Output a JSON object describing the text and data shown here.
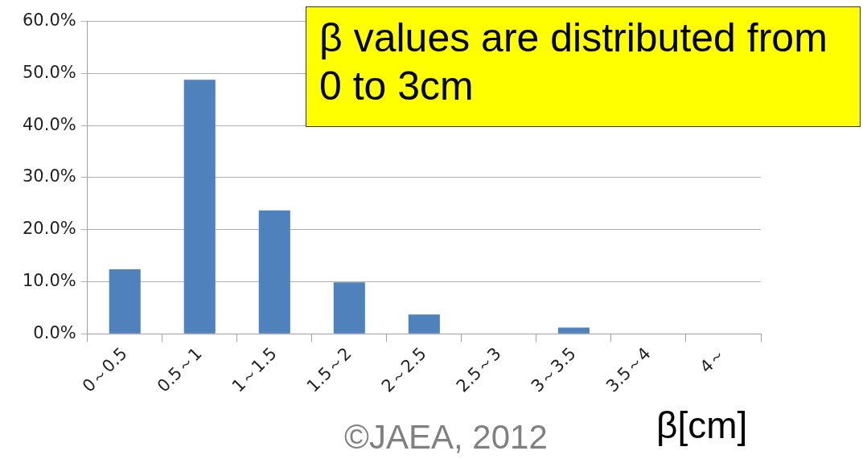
{
  "chart_data": {
    "type": "bar",
    "xlabel": "β[cm]",
    "categories": [
      "0～0.5",
      "0.5～1",
      "1～1.5",
      "1.5～2",
      "2～2.5",
      "2.5～3",
      "3～3.5",
      "3.5～4",
      "4～"
    ],
    "values": [
      12.4,
      48.8,
      23.7,
      9.9,
      3.7,
      0,
      1.2,
      0,
      0
    ],
    "color": "#4f81bd",
    "ylim": [
      0,
      60
    ],
    "yticks": [
      {
        "value": 0,
        "label": "0.0%"
      },
      {
        "value": 10,
        "label": "10.0%"
      },
      {
        "value": 20,
        "label": "20.0%"
      },
      {
        "value": 30,
        "label": "30.0%"
      },
      {
        "value": 40,
        "label": "40.0%"
      },
      {
        "value": 50,
        "label": "50.0%"
      },
      {
        "value": 60,
        "label": "60.0%"
      }
    ],
    "grid": "y",
    "legend": false,
    "annotations": [
      "β values are distributed from 0 to 3cm",
      "©JAEA, 2012"
    ]
  }
}
